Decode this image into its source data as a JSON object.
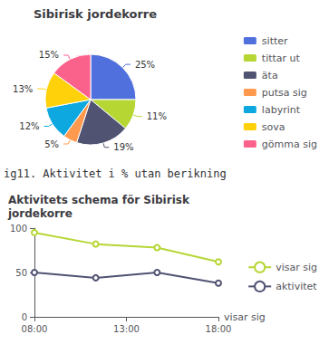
{
  "chart_data": [
    {
      "type": "pie",
      "title": "Sibirisk jordekorre",
      "categories": [
        "sitter",
        "tittar ut",
        "äta",
        "putsa sig",
        "labyrint",
        "sova",
        "gömma sig"
      ],
      "values": [
        25,
        11,
        19,
        5,
        12,
        13,
        15
      ],
      "value_labels": [
        "25%",
        "11%",
        "19%",
        "5%",
        "12%",
        "13%",
        "15%"
      ],
      "data_labels": true,
      "legend": "upper right",
      "annotations": [
        {
          "text": "ig11. Aktivitet i % utan berikning"
        }
      ]
    },
    {
      "type": "line",
      "title": "Aktivitets schema för Sibirisk\njordekorre",
      "xlabel": "visar sig",
      "x": [
        0,
        1,
        2,
        3
      ],
      "series": [
        {
          "name": "visar sig",
          "values": [
            95,
            82,
            78,
            62
          ]
        },
        {
          "name": "aktivitet",
          "values": [
            50,
            44,
            50,
            38
          ]
        }
      ],
      "xlim": [
        0,
        3
      ],
      "xticks": [
        {
          "value": 0,
          "label": "08:00"
        },
        {
          "value": 1.5,
          "label": "13:00"
        },
        {
          "value": 3,
          "label": "18:00"
        }
      ],
      "ylim": [
        0,
        100
      ],
      "yticks": [
        0,
        50,
        100
      ],
      "grid": false,
      "legend": "lower right"
    }
  ]
}
